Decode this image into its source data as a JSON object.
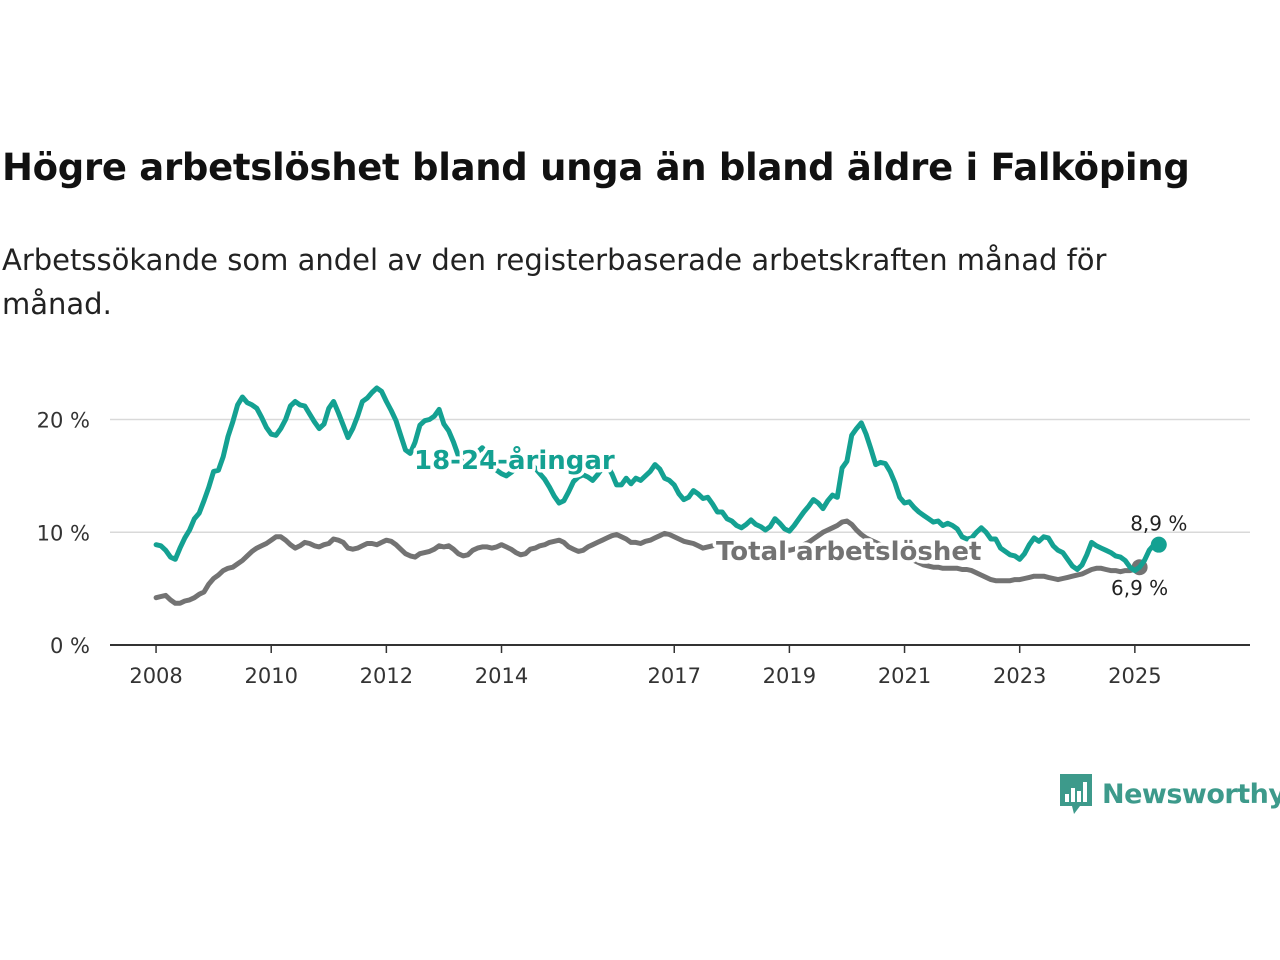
{
  "title": "Högre arbetslöshet bland unga än bland äldre i Falköping",
  "subtitle": "Arbetssökande som andel av den registerbaserade arbetskraften månad för månad.",
  "logo_text": "Newsworthy",
  "chart_data": {
    "type": "line",
    "x_start": 2008.0,
    "x_step": 0.08333,
    "xlim": [
      2007.2,
      2027.0
    ],
    "ylim": [
      0,
      22
    ],
    "yticks": [
      {
        "value": 0,
        "label": "0 %"
      },
      {
        "value": 10,
        "label": "10 %"
      },
      {
        "value": 20,
        "label": "20 %"
      }
    ],
    "xticks": [
      {
        "value": 2008,
        "label": "2008"
      },
      {
        "value": 2010,
        "label": "2010"
      },
      {
        "value": 2012,
        "label": "2012"
      },
      {
        "value": 2014,
        "label": "2014"
      },
      {
        "value": 2017,
        "label": "2017"
      },
      {
        "value": 2019,
        "label": "2019"
      },
      {
        "value": 2021,
        "label": "2021"
      },
      {
        "value": 2023,
        "label": "2023"
      },
      {
        "value": 2025,
        "label": "2025"
      }
    ],
    "series": [
      {
        "name": "18-24-åringar",
        "label": "18-24-åringar",
        "color": "#14a192",
        "end_label": "8,9 %",
        "values": [
          8.9,
          8.8,
          8.4,
          7.8,
          7.6,
          8.6,
          9.5,
          10.2,
          11.2,
          11.7,
          12.8,
          14.0,
          15.4,
          15.5,
          16.7,
          18.5,
          19.8,
          21.3,
          22.0,
          21.5,
          21.3,
          21.0,
          20.2,
          19.3,
          18.7,
          18.6,
          19.2,
          20.0,
          21.2,
          21.6,
          21.3,
          21.2,
          20.5,
          19.8,
          19.2,
          19.6,
          21.0,
          21.6,
          20.6,
          19.5,
          18.4,
          19.2,
          20.3,
          21.6,
          21.9,
          22.4,
          22.8,
          22.5,
          21.6,
          20.8,
          19.9,
          18.6,
          17.3,
          17.0,
          18.0,
          19.5,
          19.9,
          20.0,
          20.3,
          20.9,
          19.6,
          19.0,
          18.0,
          16.8,
          16.1,
          15.9,
          16.4,
          17.1,
          17.5,
          17.0,
          16.5,
          15.5,
          15.2,
          15.0,
          15.3,
          15.7,
          16.1,
          16.4,
          16.2,
          15.7,
          15.2,
          14.7,
          14.0,
          13.2,
          12.6,
          12.8,
          13.6,
          14.5,
          14.9,
          15.1,
          14.9,
          14.6,
          15.1,
          15.7,
          15.9,
          15.2,
          14.2,
          14.2,
          14.8,
          14.3,
          14.8,
          14.6,
          15.0,
          15.4,
          16.0,
          15.6,
          14.8,
          14.6,
          14.2,
          13.4,
          12.9,
          13.1,
          13.7,
          13.4,
          13.0,
          13.1,
          12.5,
          11.8,
          11.8,
          11.2,
          11.0,
          10.6,
          10.4,
          10.7,
          11.1,
          10.7,
          10.5,
          10.2,
          10.5,
          11.2,
          10.8,
          10.3,
          10.1,
          10.6,
          11.2,
          11.8,
          12.3,
          12.9,
          12.6,
          12.1,
          12.8,
          13.3,
          13.1,
          15.7,
          16.3,
          18.6,
          19.2,
          19.7,
          18.7,
          17.4,
          16.0,
          16.2,
          16.1,
          15.4,
          14.4,
          13.1,
          12.6,
          12.7,
          12.2,
          11.8,
          11.5,
          11.2,
          10.9,
          11.0,
          10.6,
          10.8,
          10.6,
          10.3,
          9.6,
          9.4,
          9.5,
          10.0,
          10.4,
          10.0,
          9.4,
          9.4,
          8.6,
          8.3,
          8.0,
          7.9,
          7.6,
          8.1,
          8.9,
          9.5,
          9.2,
          9.6,
          9.5,
          8.8,
          8.4,
          8.2,
          7.6,
          7.0,
          6.7,
          7.1,
          8.0,
          9.1,
          8.8,
          8.6,
          8.4,
          8.2,
          7.9,
          7.8,
          7.5,
          6.9,
          6.6,
          6.9,
          7.5,
          8.4,
          8.9,
          8.9
        ]
      },
      {
        "name": "Total arbetslöshet",
        "label": "Total arbetslöshet",
        "color": "#737373",
        "end_label": "6,9 %",
        "values": [
          4.2,
          4.3,
          4.4,
          4.0,
          3.7,
          3.7,
          3.9,
          4.0,
          4.2,
          4.5,
          4.7,
          5.4,
          5.9,
          6.2,
          6.6,
          6.8,
          6.9,
          7.2,
          7.5,
          7.9,
          8.3,
          8.6,
          8.8,
          9.0,
          9.3,
          9.6,
          9.6,
          9.3,
          8.9,
          8.6,
          8.8,
          9.1,
          9.0,
          8.8,
          8.7,
          8.9,
          9.0,
          9.4,
          9.3,
          9.1,
          8.6,
          8.5,
          8.6,
          8.8,
          9.0,
          9.0,
          8.9,
          9.1,
          9.3,
          9.2,
          8.9,
          8.5,
          8.1,
          7.9,
          7.8,
          8.1,
          8.2,
          8.3,
          8.5,
          8.8,
          8.7,
          8.8,
          8.5,
          8.1,
          7.9,
          8.0,
          8.4,
          8.6,
          8.7,
          8.7,
          8.6,
          8.7,
          8.9,
          8.7,
          8.5,
          8.2,
          8.0,
          8.1,
          8.5,
          8.6,
          8.8,
          8.9,
          9.1,
          9.2,
          9.3,
          9.1,
          8.7,
          8.5,
          8.3,
          8.4,
          8.7,
          8.9,
          9.1,
          9.3,
          9.5,
          9.7,
          9.8,
          9.6,
          9.4,
          9.1,
          9.1,
          9.0,
          9.2,
          9.3,
          9.5,
          9.7,
          9.9,
          9.8,
          9.6,
          9.4,
          9.2,
          9.1,
          9.0,
          8.8,
          8.6,
          8.7,
          8.8,
          8.9,
          9.0,
          8.9,
          8.7,
          8.5,
          8.4,
          8.2,
          8.1,
          8.0,
          8.1,
          8.3,
          8.5,
          8.6,
          8.6,
          8.5,
          8.4,
          8.5,
          8.7,
          8.9,
          9.1,
          9.4,
          9.7,
          10.0,
          10.2,
          10.4,
          10.6,
          10.9,
          11.0,
          10.7,
          10.2,
          9.8,
          9.5,
          9.3,
          9.1,
          8.9,
          8.7,
          8.5,
          8.3,
          8.1,
          7.9,
          7.7,
          7.5,
          7.3,
          7.1,
          7.0,
          6.9,
          6.9,
          6.8,
          6.8,
          6.8,
          6.8,
          6.7,
          6.7,
          6.6,
          6.4,
          6.2,
          6.0,
          5.8,
          5.7,
          5.7,
          5.7,
          5.7,
          5.8,
          5.8,
          5.9,
          6.0,
          6.1,
          6.1,
          6.1,
          6.0,
          5.9,
          5.8,
          5.9,
          6.0,
          6.1,
          6.2,
          6.3,
          6.5,
          6.7,
          6.8,
          6.8,
          6.7,
          6.6,
          6.6,
          6.5,
          6.6,
          6.6,
          6.7,
          6.9
        ]
      }
    ]
  }
}
